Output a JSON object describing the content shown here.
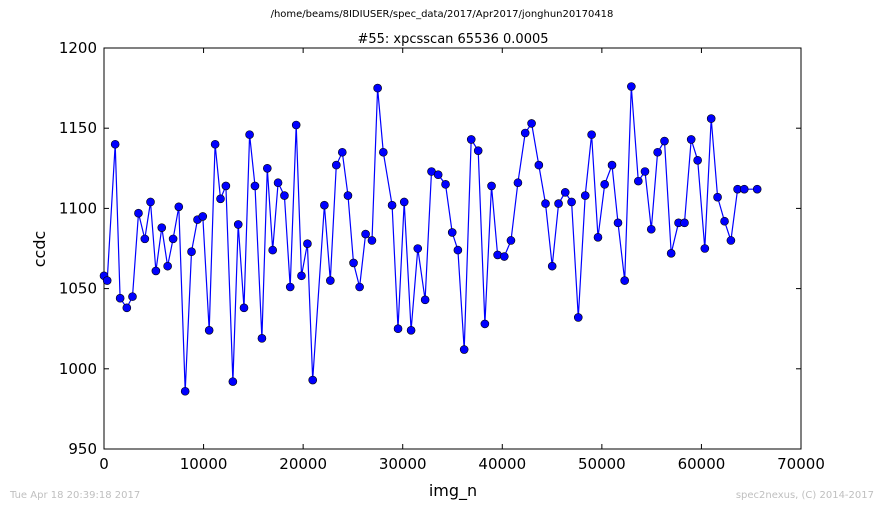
{
  "suptitle": "/home/beams/8IDIUSER/spec_data/2017/Apr2017/jonghun20170418",
  "footer": {
    "left": "Tue Apr 18 20:39:18 2017",
    "right": "spec2nexus, (C) 2014-2017"
  },
  "chart_data": {
    "type": "line",
    "title": "#55: xpcsscan 65536 0.0005",
    "xlabel": "img_n",
    "ylabel": "ccdc",
    "xlim": [
      0,
      70000
    ],
    "ylim": [
      950,
      1200
    ],
    "xticks": [
      0,
      10000,
      20000,
      30000,
      40000,
      50000,
      60000,
      70000
    ],
    "yticks": [
      950,
      1000,
      1050,
      1100,
      1150,
      1200
    ],
    "grid": false,
    "line_color": "#0000ff",
    "marker": "circle",
    "series": [
      {
        "x": [
          0,
          319,
          1121,
          1621,
          2291,
          2861,
          3461,
          4101,
          4671,
          5211,
          5801,
          6391,
          6941,
          7511,
          8151,
          8791,
          9391,
          9921,
          10561,
          11161,
          11701,
          12241,
          12941,
          13481,
          14061,
          14621,
          15161,
          15861,
          16401,
          16941,
          17481,
          18121,
          18701,
          19301,
          19831,
          20431,
          20961,
          22131,
          22731,
          23331,
          23931,
          24501,
          25061,
          25671,
          26271,
          26911,
          27481,
          28051,
          28931,
          29531,
          30151,
          30841,
          31511,
          32251,
          32891,
          33561,
          34301,
          34971,
          35541,
          36171,
          36881,
          37581,
          38251,
          38921,
          39531,
          40201,
          40871,
          41571,
          42301,
          42941,
          43671,
          44341,
          45011,
          45651,
          46321,
          46961,
          47631,
          48331,
          48971,
          49611,
          50281,
          51021,
          51621,
          52291,
          52961,
          53661,
          54331,
          54961,
          55601,
          56291,
          56961,
          57701,
          58301,
          58971,
          59621,
          60341,
          60981,
          61621,
          62321,
          62961,
          63631,
          64301,
          65601
        ],
        "y": [
          1058,
          1055,
          1140,
          1044,
          1038,
          1045,
          1097,
          1081,
          1104,
          1061,
          1088,
          1064,
          1081,
          1101,
          986,
          1073,
          1093,
          1095,
          1024,
          1140,
          1106,
          1114,
          992,
          1090,
          1038,
          1146,
          1114,
          1019,
          1125,
          1074,
          1116,
          1108,
          1051,
          1152,
          1058,
          1078,
          993,
          1102,
          1055,
          1127,
          1135,
          1108,
          1066,
          1051,
          1084,
          1080,
          1175,
          1135,
          1102,
          1025,
          1104,
          1024,
          1075,
          1043,
          1123,
          1121,
          1115,
          1085,
          1074,
          1012,
          1143,
          1136,
          1028,
          1114,
          1071,
          1070,
          1080,
          1116,
          1147,
          1153,
          1127,
          1103,
          1064,
          1103,
          1110,
          1104,
          1032,
          1108,
          1146,
          1082,
          1115,
          1127,
          1091,
          1055,
          1176,
          1117,
          1123,
          1087,
          1135,
          1142,
          1072,
          1091,
          1091,
          1143,
          1130,
          1075,
          1156,
          1107,
          1092,
          1080,
          1112,
          1112,
          1112
        ]
      }
    ]
  }
}
